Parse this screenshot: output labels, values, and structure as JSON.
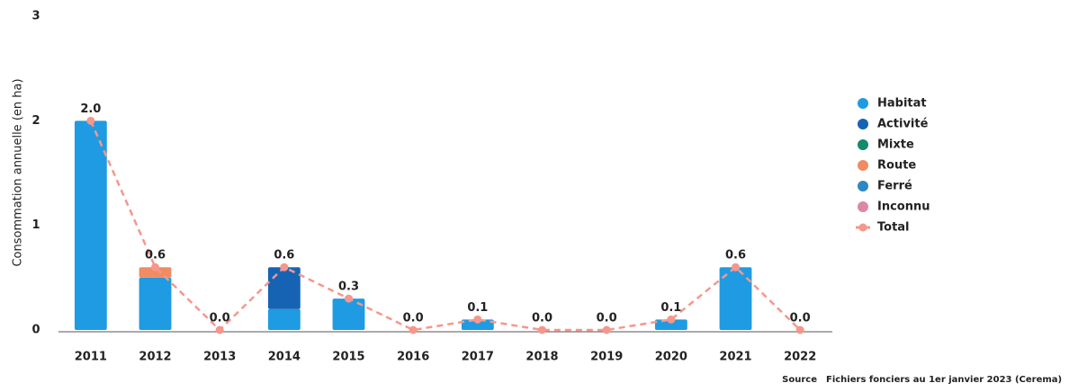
{
  "chart_data": {
    "type": "bar",
    "y_label": "Consommation annuelle (en ha)",
    "categories": [
      "2011",
      "2012",
      "2013",
      "2014",
      "2015",
      "2016",
      "2017",
      "2018",
      "2019",
      "2020",
      "2021",
      "2022"
    ],
    "ylim": [
      0,
      3
    ],
    "yticks": [
      0,
      1,
      2,
      3
    ],
    "series": [
      {
        "name": "Habitat",
        "color": "#1e9be2",
        "values": [
          2.0,
          0.5,
          0,
          0.2,
          0.3,
          0,
          0.1,
          0,
          0,
          0.1,
          0.6,
          0
        ]
      },
      {
        "name": "Activité",
        "color": "#1663b4",
        "values": [
          0,
          0,
          0,
          0.4,
          0,
          0,
          0,
          0,
          0,
          0,
          0,
          0
        ]
      },
      {
        "name": "Mixte",
        "color": "#138a6c",
        "values": [
          0,
          0,
          0,
          0,
          0,
          0,
          0,
          0,
          0,
          0,
          0,
          0
        ]
      },
      {
        "name": "Route",
        "color": "#f08b62",
        "values": [
          0,
          0.1,
          0,
          0,
          0,
          0,
          0,
          0,
          0,
          0,
          0,
          0
        ]
      },
      {
        "name": "Ferré",
        "color": "#2b88c2",
        "values": [
          0,
          0,
          0,
          0,
          0,
          0,
          0,
          0,
          0,
          0,
          0,
          0
        ]
      },
      {
        "name": "Inconnu",
        "color": "#d98aa2",
        "values": [
          0,
          0,
          0,
          0,
          0,
          0,
          0,
          0,
          0,
          0,
          0,
          0
        ]
      },
      {
        "name": "Total",
        "type": "line",
        "color": "#f5978c",
        "values": [
          2.0,
          0.6,
          0.0,
          0.6,
          0.3,
          0.0,
          0.1,
          0.0,
          0.0,
          0.1,
          0.6,
          0.0
        ],
        "value_labels": [
          "2.0",
          "0.6",
          "0.0",
          "0.6",
          "0.3",
          "0.0",
          "0.1",
          "0.0",
          "0.0",
          "0.1",
          "0.6",
          "0.0"
        ]
      }
    ],
    "source_label": "Source",
    "source": "Fichiers fonciers au 1er janvier 2023 (Cerema)"
  }
}
